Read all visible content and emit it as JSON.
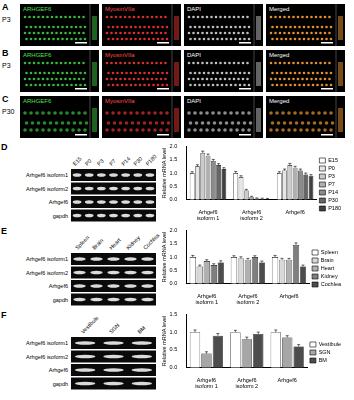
{
  "panels": [
    {
      "letter": "A",
      "stage": "P3",
      "images": [
        "ARHGEF6",
        "MyosinVIIa",
        "DAPI",
        "Merged"
      ]
    },
    {
      "letter": "B",
      "stage": "P3",
      "images": [
        "ARHGEF6",
        "MyosinVIIa",
        "DAPI",
        "Merged"
      ]
    },
    {
      "letter": "C",
      "stage": "P30",
      "images": [
        "ARHGEF6",
        "MyosinVIIa",
        "DAPI",
        "Merged"
      ]
    }
  ],
  "gels": [
    {
      "letter": "D",
      "lanes": [
        "E15",
        "P0",
        "P3",
        "P7",
        "P14",
        "P30",
        "P180"
      ],
      "rows": [
        "Arhgef6 isoform1",
        "Arhgef6 isoform2",
        "Arhgef6",
        "gapdh"
      ]
    },
    {
      "letter": "E",
      "lanes": [
        "Spleen",
        "Brain",
        "Heart",
        "Kidney",
        "Cochlea"
      ],
      "rows": [
        "Arhgef6 isoform1",
        "Arhgef6 isoform2",
        "Arhgef6",
        "gapdh"
      ]
    },
    {
      "letter": "F",
      "lanes": [
        "Vestibule",
        "SGN",
        "BM"
      ],
      "rows": [
        "Arhgef6 isoform1",
        "Arhgef6 isoform2",
        "Arhgef6",
        "gapdh"
      ]
    }
  ],
  "chart_data": [
    {
      "type": "bar",
      "y_label": "Relative mRNA level",
      "categories": [
        "Arhgef6 isoform 1",
        "Arhgef6 isoform 2",
        "Arhgef6"
      ],
      "series": [
        {
          "name": "E15",
          "color": "#ffffff",
          "values": [
            1.0,
            1.0,
            1.0
          ],
          "errors": [
            0.05,
            0.06,
            0.05
          ]
        },
        {
          "name": "P0",
          "color": "#e6e6e6",
          "values": [
            1.25,
            0.85,
            1.1
          ],
          "errors": [
            0.06,
            0.05,
            0.05
          ]
        },
        {
          "name": "P3",
          "color": "#cccccc",
          "values": [
            1.75,
            0.35,
            1.3
          ],
          "errors": [
            0.07,
            0.04,
            0.06
          ]
        },
        {
          "name": "P7",
          "color": "#b0b0b0",
          "values": [
            1.65,
            0.1,
            1.2
          ],
          "errors": [
            0.06,
            0.03,
            0.05
          ]
        },
        {
          "name": "P14",
          "color": "#8c8c8c",
          "values": [
            1.45,
            0.05,
            1.1
          ],
          "errors": [
            0.06,
            0.02,
            0.05
          ]
        },
        {
          "name": "P30",
          "color": "#666666",
          "values": [
            1.3,
            0.04,
            0.95
          ],
          "errors": [
            0.05,
            0.02,
            0.05
          ]
        },
        {
          "name": "P180",
          "color": "#404040",
          "values": [
            1.15,
            0.03,
            0.9
          ],
          "errors": [
            0.05,
            0.02,
            0.04
          ]
        }
      ],
      "ylim": [
        0,
        2
      ],
      "yticks": [
        {
          "value": 0,
          "label": "0.0"
        },
        0.5,
        {
          "value": 1,
          "label": "1.0"
        },
        1.5,
        {
          "value": 2,
          "label": "2.0"
        }
      ],
      "legend": "right",
      "grid": false
    },
    {
      "type": "bar",
      "y_label": "Relative mRNA level",
      "categories": [
        "Arhgef6 isoform 1",
        "Arhgef6 isoform 2",
        "Arhgef6"
      ],
      "series": [
        {
          "name": "Spleen",
          "color": "#ffffff",
          "values": [
            1.0,
            1.0,
            1.0
          ],
          "errors": [
            0.06,
            0.05,
            0.06
          ]
        },
        {
          "name": "Brain",
          "color": "#d9d9d9",
          "values": [
            0.65,
            0.95,
            0.9
          ],
          "errors": [
            0.05,
            0.06,
            0.05
          ]
        },
        {
          "name": "Heart",
          "color": "#b0b0b0",
          "values": [
            0.85,
            0.9,
            0.9
          ],
          "errors": [
            0.05,
            0.05,
            0.05
          ]
        },
        {
          "name": "Kidney",
          "color": "#7f7f7f",
          "values": [
            0.7,
            1.0,
            1.45
          ],
          "errors": [
            0.05,
            0.05,
            0.08
          ]
        },
        {
          "name": "Cochlea",
          "color": "#4d4d4d",
          "values": [
            0.8,
            0.8,
            0.65
          ],
          "errors": [
            0.06,
            0.05,
            0.05
          ]
        }
      ],
      "ylim": [
        0,
        2
      ],
      "yticks": [
        {
          "value": 0,
          "label": "0.0"
        },
        0.5,
        {
          "value": 1,
          "label": "1.0"
        },
        1.5,
        {
          "value": 2,
          "label": "2.0"
        }
      ],
      "legend": "right",
      "grid": false
    },
    {
      "type": "bar",
      "y_label": "Relative mRNA level",
      "categories": [
        "Arhgef6 isoform 1",
        "Arhgef6 isoform 2",
        "Arhgef6"
      ],
      "series": [
        {
          "name": "Vestibule",
          "color": "#ffffff",
          "values": [
            1.0,
            1.0,
            1.0
          ],
          "errors": [
            0.06,
            0.05,
            0.06
          ]
        },
        {
          "name": "SGN",
          "color": "#a6a6a6",
          "values": [
            0.4,
            0.8,
            0.85
          ],
          "errors": [
            0.05,
            0.06,
            0.05
          ]
        },
        {
          "name": "BM",
          "color": "#4d4d4d",
          "values": [
            0.9,
            0.95,
            0.6
          ],
          "errors": [
            0.06,
            0.05,
            0.05
          ]
        }
      ],
      "ylim": [
        0,
        1.5
      ],
      "yticks": [
        {
          "value": 0,
          "label": "0.0"
        },
        0.5,
        {
          "value": 1,
          "label": "1.0"
        },
        1.5
      ],
      "legend": "right",
      "grid": false
    }
  ]
}
